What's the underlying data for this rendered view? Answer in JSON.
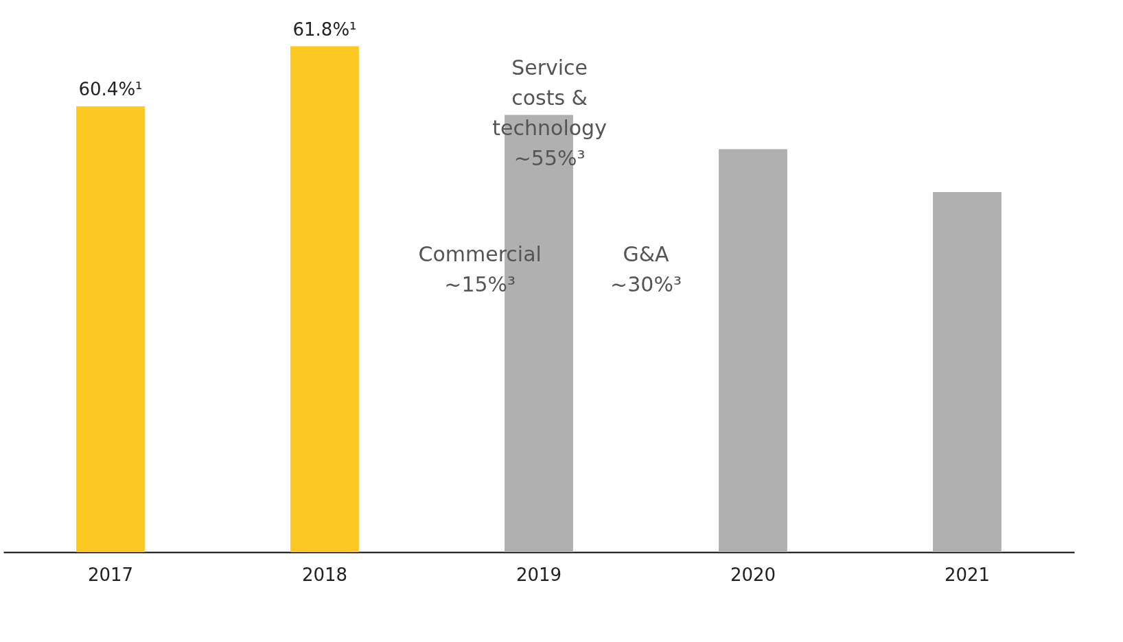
{
  "chart_data": {
    "type": "bar",
    "categories": [
      "2017",
      "2018",
      "2019",
      "2020",
      "2021"
    ],
    "values": [
      60.4,
      61.8,
      60.2,
      59.4,
      58.4
    ],
    "colors": [
      "#fcc822",
      "#fcc822",
      "#b0b0b0",
      "#b0b0b0",
      "#b0b0b0"
    ],
    "value_labels": [
      "60.4%¹",
      "61.8%¹",
      null,
      null,
      null
    ],
    "ylim": [
      50,
      62.8
    ],
    "tick_labels": "x",
    "grid": false,
    "annotations": [
      "Service\ncosts &\ntechnology\n~55%³",
      "Commercial\n~15%³",
      "G&A\n~30%³"
    ]
  }
}
